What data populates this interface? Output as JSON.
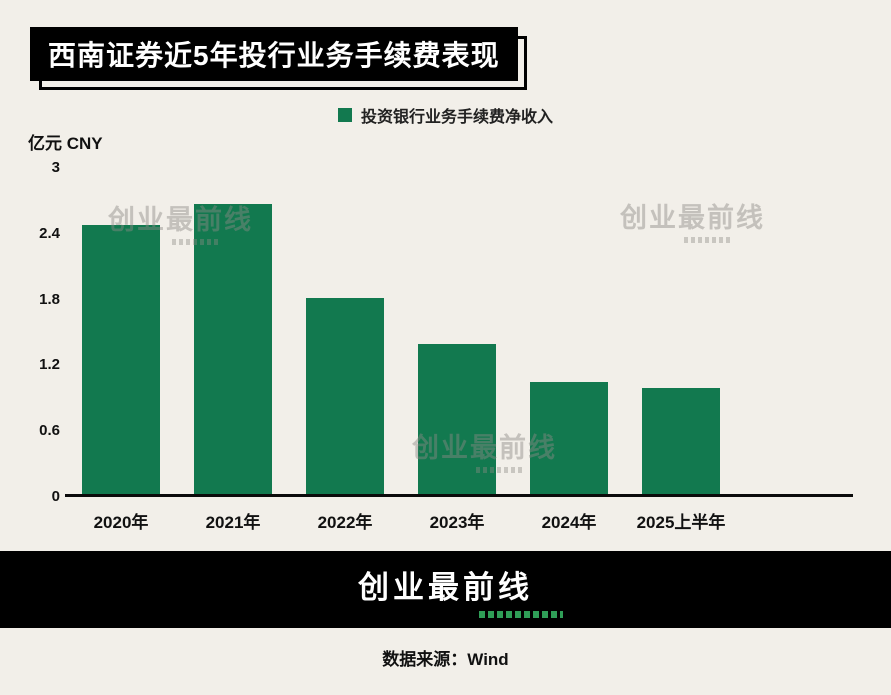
{
  "page": {
    "background_color": "#f2efe9",
    "accent_color": "#12794f"
  },
  "chart_data": {
    "type": "bar",
    "title": "西南证券近5年投行业务手续费表现",
    "legend": "投资银行业务手续费净收入",
    "legend_position": "top",
    "categories": [
      "2020年",
      "2021年",
      "2022年",
      "2023年",
      "2024年",
      "2025上半年"
    ],
    "values": [
      2.48,
      2.67,
      1.8,
      1.38,
      1.03,
      0.98
    ],
    "xlabel": "",
    "ylabel": "亿元 CNY",
    "ylim": [
      0,
      3
    ],
    "yticks": [
      0,
      0.6,
      1.2,
      1.8,
      2.4,
      3
    ],
    "grid": false,
    "bar_color": "#12794f"
  },
  "watermark": {
    "text": "创业最前线"
  },
  "footer": {
    "logo_text": "创业最前线",
    "source_label": "数据来源：Wind"
  }
}
